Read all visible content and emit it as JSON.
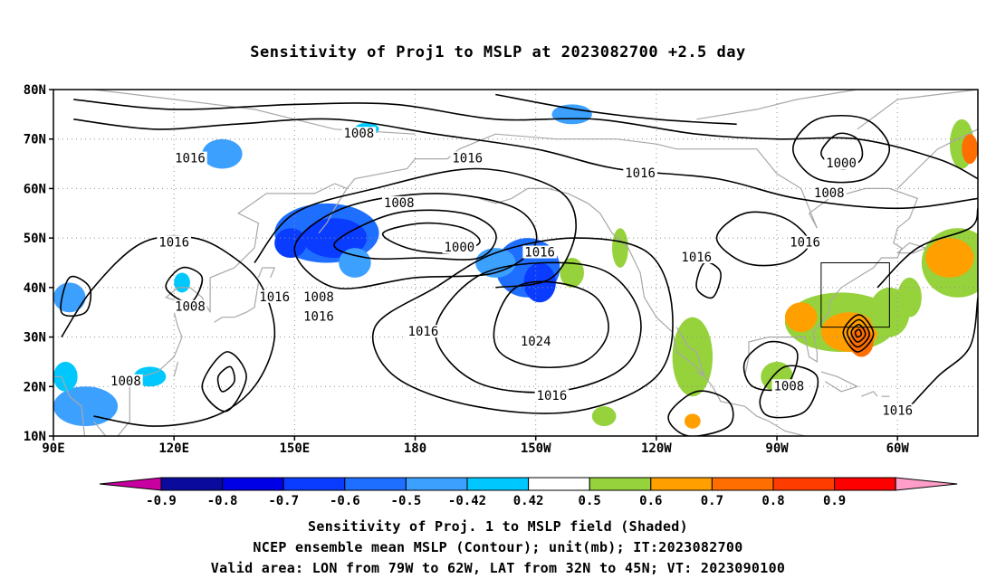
{
  "title": "Sensitivity of Proj1 to MSLP at 2023082700 +2.5 day",
  "lat_labels": [
    "80N",
    "70N",
    "60N",
    "50N",
    "40N",
    "30N",
    "20N",
    "10N"
  ],
  "lon_labels": [
    "90E",
    "120E",
    "150E",
    "180",
    "150W",
    "120W",
    "90W",
    "60W"
  ],
  "contour_labels": [
    {
      "text": "1008",
      "lon": 166,
      "lat": 71
    },
    {
      "text": "1016",
      "lon": 124,
      "lat": 66
    },
    {
      "text": "1016",
      "lon": 193,
      "lat": 66
    },
    {
      "text": "1016",
      "lon": 236,
      "lat": 63
    },
    {
      "text": "1000",
      "lon": 286,
      "lat": 65
    },
    {
      "text": "1008",
      "lon": 283,
      "lat": 59
    },
    {
      "text": "1008",
      "lon": 176,
      "lat": 57
    },
    {
      "text": "1000",
      "lon": 191,
      "lat": 48
    },
    {
      "text": "1016",
      "lon": 120,
      "lat": 49
    },
    {
      "text": "1016",
      "lon": 211,
      "lat": 47
    },
    {
      "text": "1016",
      "lon": 250,
      "lat": 46
    },
    {
      "text": "1016",
      "lon": 277,
      "lat": 49
    },
    {
      "text": "1008",
      "lon": 124,
      "lat": 36
    },
    {
      "text": "1016",
      "lon": 145,
      "lat": 38
    },
    {
      "text": "1008",
      "lon": 156,
      "lat": 38
    },
    {
      "text": "1016",
      "lon": 156,
      "lat": 34
    },
    {
      "text": "1016",
      "lon": 182,
      "lat": 31
    },
    {
      "text": "1024",
      "lon": 210,
      "lat": 29
    },
    {
      "text": "1008",
      "lon": 108,
      "lat": 21
    },
    {
      "text": "1016",
      "lon": 214,
      "lat": 18
    },
    {
      "text": "1008",
      "lon": 273,
      "lat": 20
    },
    {
      "text": "1016",
      "lon": 300,
      "lat": 15
    }
  ],
  "colorbar": {
    "labels": [
      "-0.9",
      "-0.8",
      "-0.7",
      "-0.6",
      "-0.5",
      "-0.42",
      "0.42",
      "0.5",
      "0.6",
      "0.7",
      "0.8",
      "0.9"
    ],
    "colors": [
      "#0a0a9c",
      "#0000e6",
      "#0a3cff",
      "#1e6eff",
      "#3ca0ff",
      "#00c8ff",
      "#ffffff",
      "#96d23c",
      "#ffa000",
      "#ff6e00",
      "#ff3c00",
      "#ff0000"
    ],
    "low_end_color": "#c800a0",
    "high_end_color": "#ff9ec8"
  },
  "captions": [
    "Sensitivity of Proj. 1 to MSLP field (Shaded)",
    "NCEP ensemble mean MSLP (Contour); unit(mb); IT:2023082700",
    "Valid area: LON from 79W to 62W, LAT from 32N to 45N; VT: 2023090100"
  ]
}
